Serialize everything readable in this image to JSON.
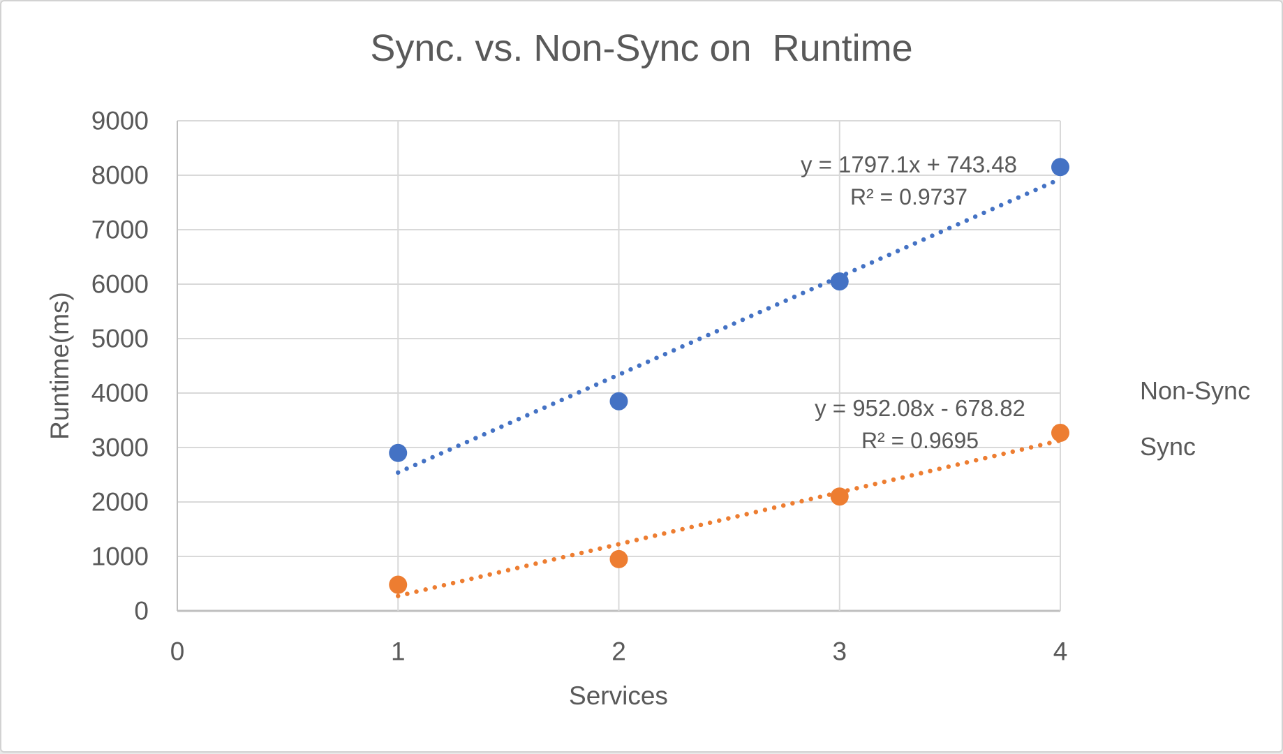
{
  "chart_data": {
    "type": "scatter",
    "title": "Sync. vs. Non-Sync on  Runtime",
    "xlabel": "Services",
    "ylabel": "Runtime(ms)",
    "xlim": [
      0,
      4
    ],
    "ylim": [
      0,
      9000
    ],
    "xticks": [
      0,
      1,
      2,
      3,
      4
    ],
    "yticks": [
      0,
      1000,
      2000,
      3000,
      4000,
      5000,
      6000,
      7000,
      8000,
      9000
    ],
    "grid": true,
    "legend_position": "right",
    "colors": {
      "non_sync": "#4472C4",
      "sync": "#ED7D31",
      "gridline": "#D9D9D9",
      "axis_line": "#BFBFBF",
      "text": "#595959"
    },
    "series": [
      {
        "name": "Non-Sync",
        "color": "#4472C4",
        "x": [
          1,
          2,
          3,
          4
        ],
        "y": [
          2900,
          3850,
          6050,
          8150
        ],
        "trendline": {
          "slope": 1797.1,
          "intercept": 743.48,
          "equation": "y = 1797.1x + 743.48",
          "r2_label": "R² = 0.9737"
        }
      },
      {
        "name": "Sync",
        "color": "#ED7D31",
        "x": [
          1,
          2,
          3,
          4
        ],
        "y": [
          480,
          950,
          2100,
          3270
        ],
        "trendline": {
          "slope": 952.08,
          "intercept": -678.82,
          "equation": "y = 952.08x - 678.82",
          "r2_label": "R² = 0.9695"
        }
      }
    ]
  }
}
